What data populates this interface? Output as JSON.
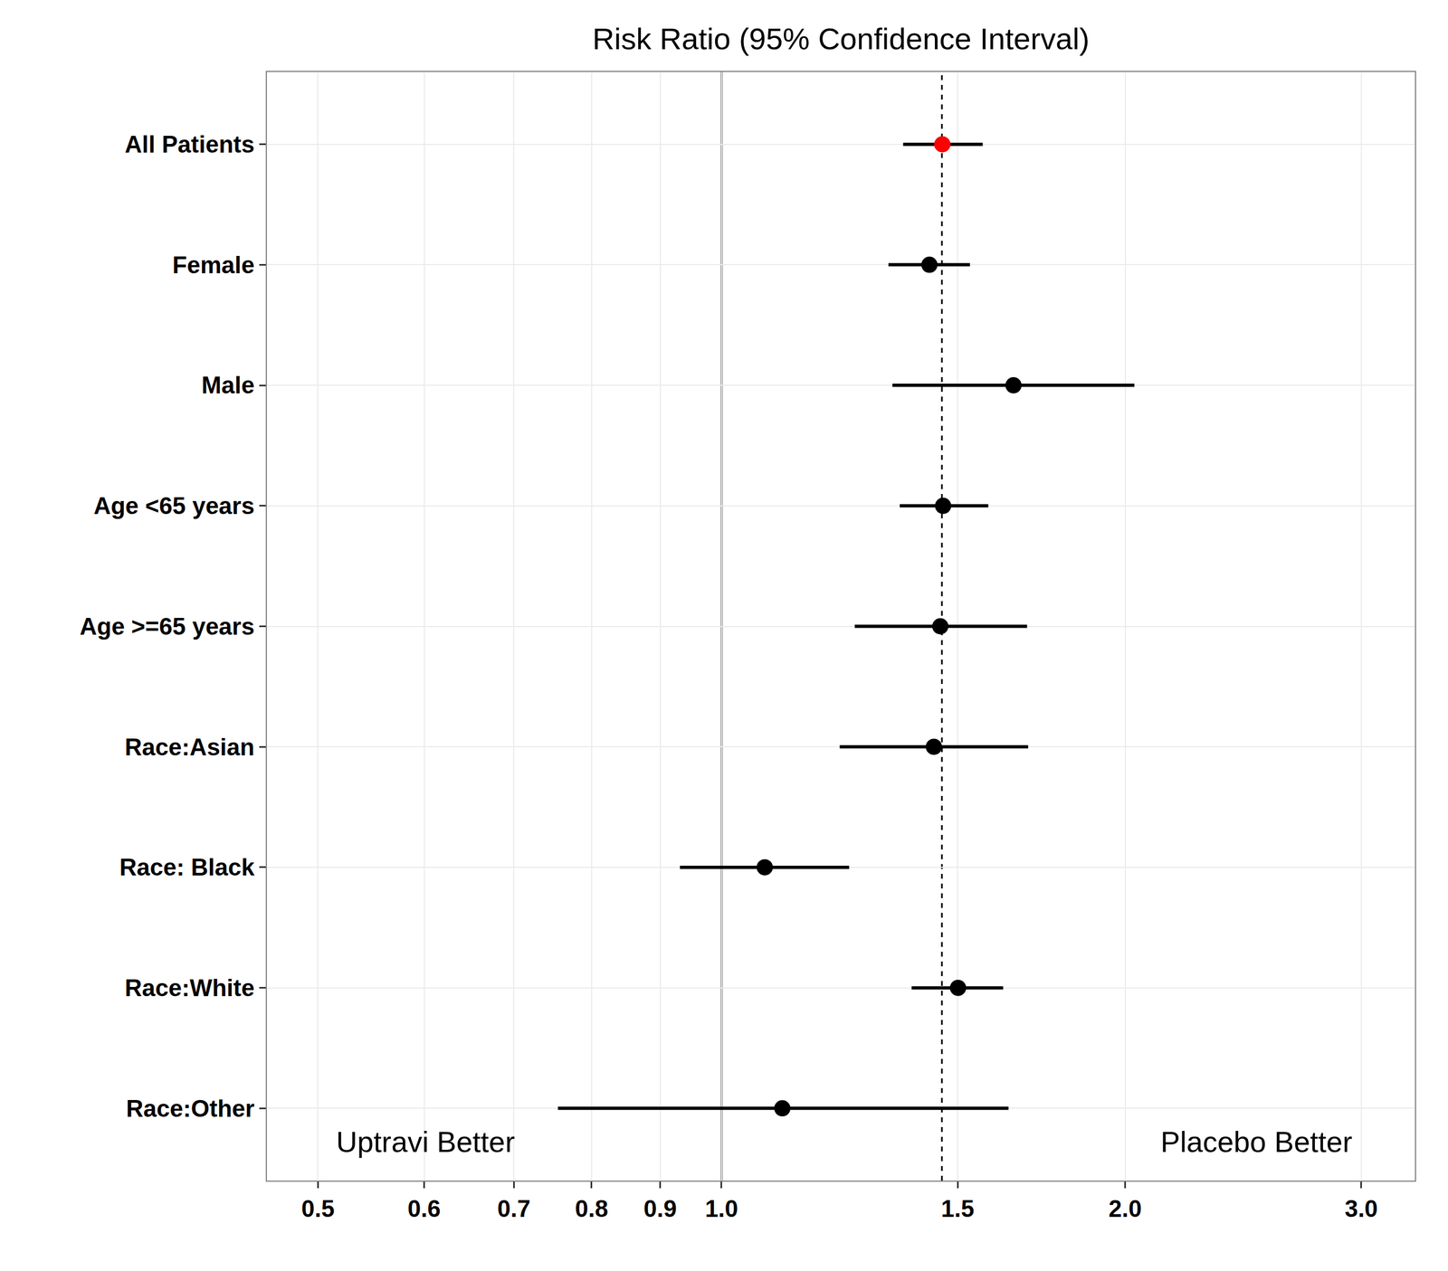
{
  "chart_data": {
    "type": "forest",
    "title": "Risk Ratio (95% Confidence Interval)",
    "categories": [
      "All Patients",
      "Female",
      "Male",
      "Age <65 years",
      "Age >=65 years",
      "Race:Asian",
      "Race: Black",
      "Race:White",
      "Race:Other"
    ],
    "values": [
      1.461,
      1.429,
      1.651,
      1.463,
      1.456,
      1.44,
      1.077,
      1.501,
      1.11
    ],
    "lower": [
      1.366,
      1.332,
      1.341,
      1.358,
      1.257,
      1.225,
      0.931,
      1.386,
      0.755
    ],
    "upper": [
      1.566,
      1.532,
      2.032,
      1.581,
      1.69,
      1.693,
      1.245,
      1.622,
      1.637
    ],
    "colors": [
      "#ff0000",
      "#000000",
      "#000000",
      "#000000",
      "#000000",
      "#000000",
      "#000000",
      "#000000",
      "#000000"
    ],
    "marker": "circle",
    "reference_lines": [
      {
        "value": 1.0,
        "line_style": "solid"
      },
      {
        "value": 1.46,
        "line_style": "dashed"
      }
    ],
    "annotations": [
      {
        "text": "Uptravi Better",
        "side": "left"
      },
      {
        "text": "Placebo Better",
        "side": "right"
      }
    ],
    "log": "x",
    "grid": true,
    "xlim": [
      0.458,
      3.29
    ],
    "xticks": [
      0.5,
      0.6,
      0.7,
      0.8,
      0.9,
      {
        "value": 1,
        "label": "1.0"
      },
      1.5,
      {
        "value": 2,
        "label": "2.0"
      },
      {
        "value": 3,
        "label": "3.0"
      }
    ]
  }
}
